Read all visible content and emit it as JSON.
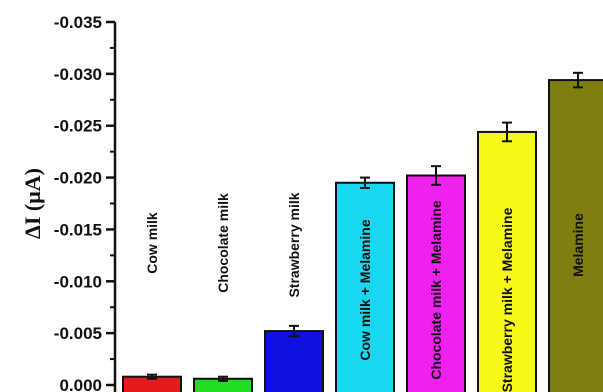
{
  "chart_data": {
    "type": "bar",
    "title": "",
    "xlabel": "",
    "ylabel": "ΔI (μA)",
    "ylim": [
      0,
      -0.035
    ],
    "y_ticks": [
      "-0.035",
      "-0.030",
      "-0.025",
      "-0.020",
      "-0.015",
      "-0.010",
      "-0.005",
      "0.000"
    ],
    "categories": [
      "Cow milk",
      "Chocolate milk",
      "Strawberry milk",
      "Cow milk + Melamine",
      "Chocolate milk + Melamine",
      "Strawberry milk + Melamine",
      "Melamine"
    ],
    "values": [
      -0.0008,
      -0.0006,
      -0.0052,
      -0.0195,
      -0.0202,
      -0.0244,
      -0.0294
    ],
    "errors": [
      0.0002,
      0.0002,
      0.0005,
      0.0005,
      0.0009,
      0.0009,
      0.0007
    ],
    "colors": [
      "#e41a1c",
      "#22dd22",
      "#1010e0",
      "#17d8f0",
      "#f020f0",
      "#f8f818",
      "#7f7f10"
    ],
    "grid": false,
    "legend": "none"
  }
}
